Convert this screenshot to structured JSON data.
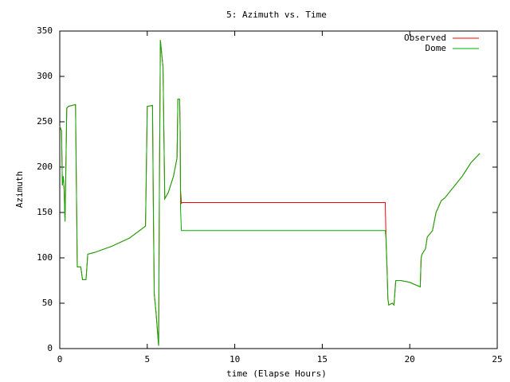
{
  "chart_data": {
    "type": "line",
    "title": "5: Azimuth vs. Time",
    "x_label": "time (Elapse Hours)",
    "y_label": "Azimuth",
    "x": [
      0,
      0.1,
      0.15,
      0.2,
      0.25,
      0.3,
      0.35,
      0.4,
      0.5,
      0.9,
      0.95,
      1.0,
      1.2,
      1.3,
      1.5,
      1.6,
      2.0,
      3.0,
      4.0,
      4.9,
      4.95,
      5.0,
      5.3,
      5.35,
      5.4,
      5.5,
      5.6,
      5.65,
      5.7,
      5.75,
      5.85,
      5.9,
      6.0,
      6.2,
      6.5,
      6.7,
      6.75,
      6.85,
      6.88,
      6.9,
      6.95,
      7.0,
      18.6,
      18.65,
      18.7,
      18.75,
      18.8,
      19.0,
      19.1,
      19.2,
      19.5,
      20.0,
      20.6,
      20.65,
      20.7,
      20.9,
      21.0,
      21.3,
      21.5,
      21.8,
      22.0,
      23.0,
      23.5,
      24.0
    ],
    "series": [
      {
        "name": "Observed",
        "color": "#ff0000",
        "values": [
          245,
          240,
          180,
          190,
          175,
          140,
          200,
          265,
          267,
          269,
          180,
          90,
          90,
          76,
          76,
          104,
          106,
          113,
          122,
          135,
          200,
          267,
          268,
          150,
          60,
          40,
          15,
          3,
          200,
          340,
          320,
          310,
          165,
          172,
          190,
          210,
          275,
          275,
          240,
          175,
          160,
          161,
          161,
          115,
          90,
          55,
          48,
          50,
          48,
          75,
          75,
          73,
          68,
          100,
          104,
          110,
          123,
          130,
          150,
          163,
          166,
          190,
          205,
          215
        ]
      },
      {
        "name": "Dome",
        "color": "#00b000",
        "values": [
          245,
          240,
          180,
          190,
          175,
          140,
          200,
          265,
          267,
          269,
          180,
          90,
          90,
          76,
          76,
          104,
          106,
          113,
          122,
          135,
          200,
          267,
          268,
          150,
          60,
          40,
          15,
          3,
          200,
          340,
          320,
          310,
          165,
          172,
          190,
          210,
          275,
          275,
          240,
          155,
          130,
          130,
          130,
          120,
          90,
          55,
          48,
          50,
          48,
          75,
          75,
          73,
          68,
          100,
          104,
          110,
          123,
          130,
          150,
          163,
          166,
          190,
          205,
          215
        ]
      }
    ],
    "xlim": [
      0,
      25
    ],
    "xticks": [
      0,
      5,
      10,
      15,
      20,
      25
    ],
    "ylim": [
      0,
      350
    ],
    "yticks": [
      0,
      50,
      100,
      150,
      200,
      250,
      300,
      350
    ],
    "legend": "top-right"
  }
}
